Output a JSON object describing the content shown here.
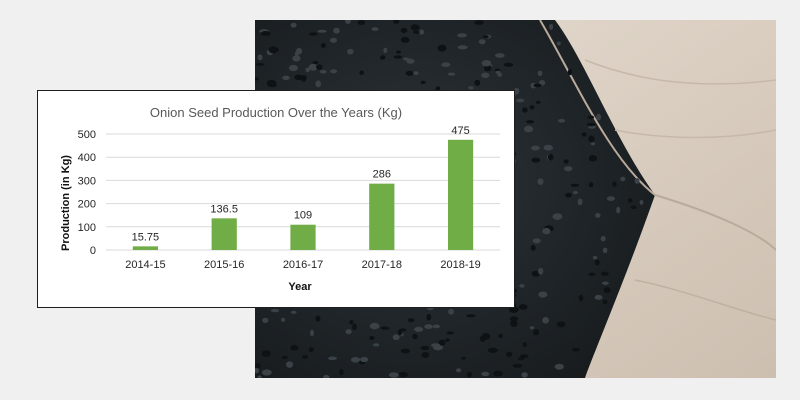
{
  "photo": {
    "subject": "onion-seeds-in-hand"
  },
  "colors": {
    "bar": "#70ad47",
    "grid": "#d9d9d9",
    "background": "#f0f0f0"
  },
  "chart_data": {
    "type": "bar",
    "title": "Onion Seed Production Over the Years (Kg)",
    "xlabel": "Year",
    "ylabel": "Production  (in Kg)",
    "categories": [
      "2014-15",
      "2015-16",
      "2016-17",
      "2017-18",
      "2018-19"
    ],
    "values": [
      15.75,
      136.5,
      109,
      286,
      475
    ],
    "value_labels": [
      "15.75",
      "136.5",
      "109",
      "286",
      "475"
    ],
    "ylim": [
      0,
      500
    ],
    "yticks": [
      "0",
      "100",
      "200",
      "300",
      "400",
      "500"
    ],
    "grid": true,
    "legend": "none"
  }
}
